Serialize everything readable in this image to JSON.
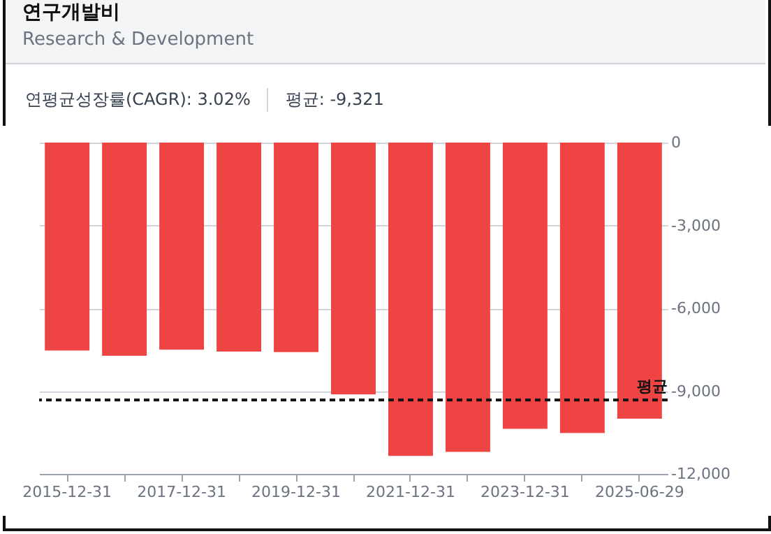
{
  "chart_data": {
    "type": "bar",
    "title": "연구개발비",
    "subtitle": "Research & Development",
    "annotations": [
      "연평균성장률(CAGR): 3.02%",
      "평균: -9,321"
    ],
    "categories": [
      "2015-12-31",
      null,
      "2017-12-31",
      null,
      "2019-12-31",
      null,
      "2021-12-31",
      null,
      "2023-12-31",
      null,
      "2025-06-29"
    ],
    "values": [
      -7530,
      -7720,
      -7500,
      -7570,
      -7590,
      -9120,
      -11350,
      -11200,
      -10370,
      -10520,
      -10000
    ],
    "color": "#ef4444",
    "ylim": [
      -12000,
      0
    ],
    "yticks": [
      {
        "value": -12000,
        "label": "-12,000"
      },
      {
        "value": -9000,
        "label": "-9,000"
      },
      {
        "value": -6000,
        "label": "-6,000"
      },
      {
        "value": -3000,
        "label": "-3,000"
      },
      0
    ],
    "grid": "y",
    "ref_lines": [
      {
        "axis": "y",
        "value": -9321,
        "label": "평균",
        "color": "#111111",
        "line_style": "dashed"
      }
    ]
  }
}
